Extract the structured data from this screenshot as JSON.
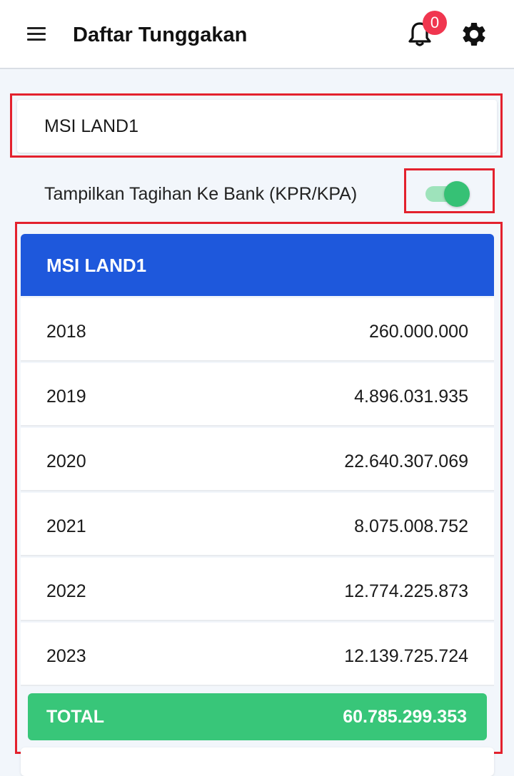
{
  "appbar": {
    "title": "Daftar Tunggakan",
    "notification_count": "0",
    "icons": [
      "menu-icon",
      "bell-icon",
      "gear-icon"
    ]
  },
  "project_select": {
    "value": "MSI LAND1"
  },
  "bank_toggle": {
    "label": "Tampilkan Tagihan Ke Bank (KPR/KPA)",
    "on": true
  },
  "card": {
    "title": "MSI LAND1",
    "rows": [
      {
        "year": "2018",
        "amount": "260.000.000"
      },
      {
        "year": "2019",
        "amount": "4.896.031.935"
      },
      {
        "year": "2020",
        "amount": "22.640.307.069"
      },
      {
        "year": "2021",
        "amount": "8.075.008.752"
      },
      {
        "year": "2022",
        "amount": "12.774.225.873"
      },
      {
        "year": "2023",
        "amount": "12.139.725.724"
      }
    ],
    "total_label": "TOTAL",
    "total_value": "60.785.299.353"
  },
  "colors": {
    "header_blue": "#1e58dc",
    "total_green": "#38c679",
    "badge_red": "#f0364f",
    "highlight_red": "#e3212d",
    "switch_green": "#36c175"
  }
}
